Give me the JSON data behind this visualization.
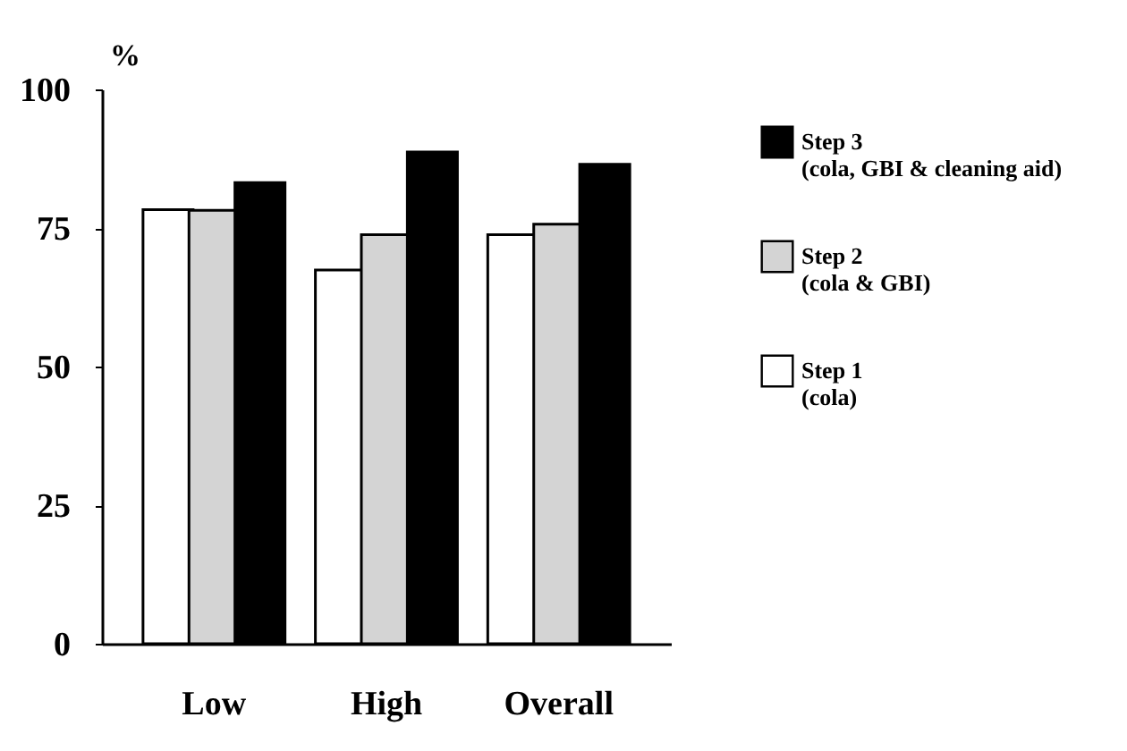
{
  "chart_data": {
    "type": "bar",
    "ylabel": "%",
    "categories": [
      "Low",
      "High",
      "Overall"
    ],
    "series": [
      {
        "name": "Step 1\n(cola)",
        "color": "#ffffff",
        "values": [
          78.3,
          67.4,
          73.8
        ]
      },
      {
        "name": "Step 2\n(cola & GBI)",
        "color": "#d4d4d4",
        "values": [
          78.2,
          73.8,
          75.7
        ]
      },
      {
        "name": "Step 3\n(cola, GBI & cleaning aid)",
        "color": "#000000",
        "values": [
          83.2,
          88.7,
          86.5
        ]
      }
    ],
    "ylim": [
      0,
      100
    ],
    "yticks": [
      0,
      25,
      50,
      75,
      100
    ],
    "grid": false,
    "legend": "right"
  }
}
